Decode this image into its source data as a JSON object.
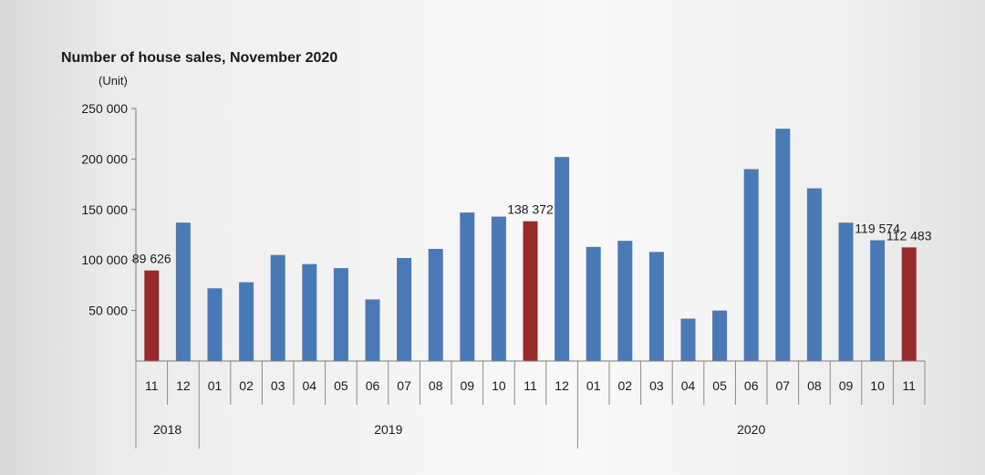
{
  "chart_data": {
    "type": "bar",
    "title": "Number of house sales, November 2020",
    "ylabel": "(Unit)",
    "ylim": [
      0,
      250000
    ],
    "yticks": [
      50000,
      100000,
      150000,
      200000,
      250000
    ],
    "ytick_labels": [
      "50 000",
      "100 000",
      "150 000",
      "200 000",
      "250 000"
    ],
    "categories": [
      "11",
      "12",
      "01",
      "02",
      "03",
      "04",
      "05",
      "06",
      "07",
      "08",
      "09",
      "10",
      "11",
      "12",
      "01",
      "02",
      "03",
      "04",
      "05",
      "06",
      "07",
      "08",
      "09",
      "10",
      "11"
    ],
    "years": [
      {
        "label": "2018",
        "start": 0,
        "end": 1
      },
      {
        "label": "2019",
        "start": 2,
        "end": 13
      },
      {
        "label": "2020",
        "start": 14,
        "end": 24
      }
    ],
    "values": [
      89626,
      137000,
      72000,
      78000,
      105000,
      96000,
      92000,
      61000,
      102000,
      111000,
      147000,
      143000,
      138372,
      202000,
      113000,
      119000,
      108000,
      42000,
      50000,
      190000,
      230000,
      171000,
      137000,
      119574,
      112483
    ],
    "highlight_indices": [
      0,
      12,
      24
    ],
    "data_labels": [
      {
        "index": 0,
        "text": "89 626"
      },
      {
        "index": 12,
        "text": "138 372"
      },
      {
        "index": 23,
        "text": "119 574"
      },
      {
        "index": 24,
        "text": "112 483"
      }
    ],
    "colors": {
      "default": "#4a7ab6",
      "highlight": "#962b2a"
    },
    "grid": false,
    "legend": "none"
  }
}
